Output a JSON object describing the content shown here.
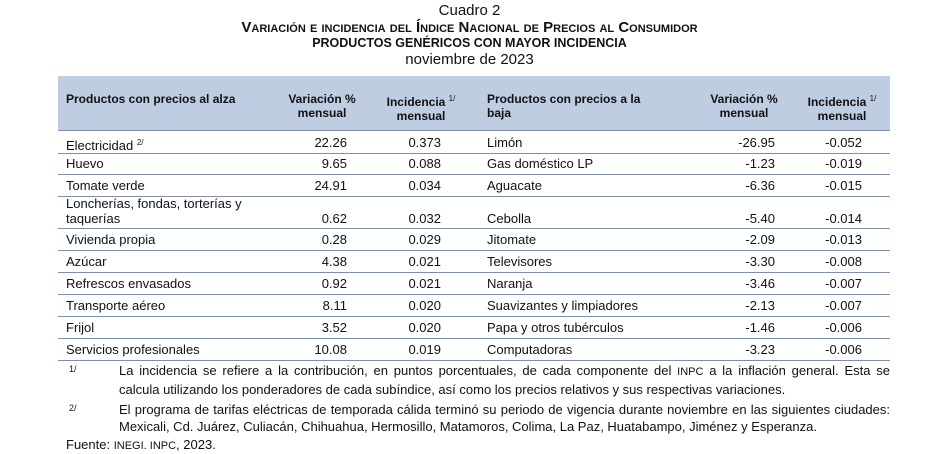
{
  "titles": {
    "cuadro": "Cuadro 2",
    "main_parts": [
      "V",
      "ariación e incidencia del ",
      "Í",
      "ndice ",
      "N",
      "acional de ",
      "P",
      "recios al ",
      "C",
      "onsumidor"
    ],
    "subtitle": "PRODUCTOS GENÉRICOS CON MAYOR INCIDENCIA",
    "period": "noviembre de 2023"
  },
  "table": {
    "headers": {
      "alza_product": "Productos con precios al alza",
      "variacion": "Variación % mensual",
      "incidencia": "Incidencia",
      "incidencia_note": "1/",
      "incidencia_sub": "mensual",
      "baja_product": "Productos con precios a la baja"
    },
    "rows": [
      {
        "alza": "Electricidad",
        "alza_note": "2/",
        "var_up": "22.26",
        "inc_up": "0.373",
        "baja": "Limón",
        "var_down": "-26.95",
        "inc_down": "-0.052"
      },
      {
        "alza": "Huevo",
        "var_up": "9.65",
        "inc_up": "0.088",
        "baja": "Gas doméstico LP",
        "var_down": "-1.23",
        "inc_down": "-0.019"
      },
      {
        "alza": "Tomate verde",
        "var_up": "24.91",
        "inc_up": "0.034",
        "baja": "Aguacate",
        "var_down": "-6.36",
        "inc_down": "-0.015"
      },
      {
        "alza": "Loncherías, fondas, torterías y taquerías",
        "var_up": "0.62",
        "inc_up": "0.032",
        "baja": "Cebolla",
        "var_down": "-5.40",
        "inc_down": "-0.014"
      },
      {
        "alza": "Vivienda propia",
        "var_up": "0.28",
        "inc_up": "0.029",
        "baja": "Jitomate",
        "var_down": "-2.09",
        "inc_down": "-0.013"
      },
      {
        "alza": "Azúcar",
        "var_up": "4.38",
        "inc_up": "0.021",
        "baja": "Televisores",
        "var_down": "-3.30",
        "inc_down": "-0.008"
      },
      {
        "alza": "Refrescos envasados",
        "var_up": "0.92",
        "inc_up": "0.021",
        "baja": "Naranja",
        "var_down": "-3.46",
        "inc_down": "-0.007"
      },
      {
        "alza": "Transporte aéreo",
        "var_up": "8.11",
        "inc_up": "0.020",
        "baja": "Suavizantes y limpiadores",
        "var_down": "-2.13",
        "inc_down": "-0.007"
      },
      {
        "alza": "Frijol",
        "var_up": "3.52",
        "inc_up": "0.020",
        "baja": "Papa y otros tubérculos",
        "var_down": "-1.46",
        "inc_down": "-0.006"
      },
      {
        "alza": "Servicios profesionales",
        "var_up": "10.08",
        "inc_up": "0.019",
        "baja": "Computadoras",
        "var_down": "-3.23",
        "inc_down": "-0.006"
      }
    ]
  },
  "notes": [
    {
      "mark": "1/",
      "text_a": "La incidencia se refiere a la contribución, en puntos porcentuales, de cada componente del ",
      "text_sc": "INPC",
      "text_b": " a la inflación general. Esta se calcula utilizando los ponderadores de cada subíndice, así como los precios relativos y sus respectivas variaciones."
    },
    {
      "mark": "2/",
      "text_a": "El programa de tarifas eléctricas de temporada cálida terminó su periodo de vigencia durante noviembre en las siguientes ciudades: Mexicali, Cd. Juárez, Culiacán, Chihuahua, Hermosillo, Matamoros, Colima, La Paz, Huatabampo, Jiménez y Esperanza.",
      "text_sc": "",
      "text_b": ""
    }
  ],
  "source": {
    "label": "Fuente: ",
    "org": "INEGI. INPC",
    "year": ", 2023."
  }
}
